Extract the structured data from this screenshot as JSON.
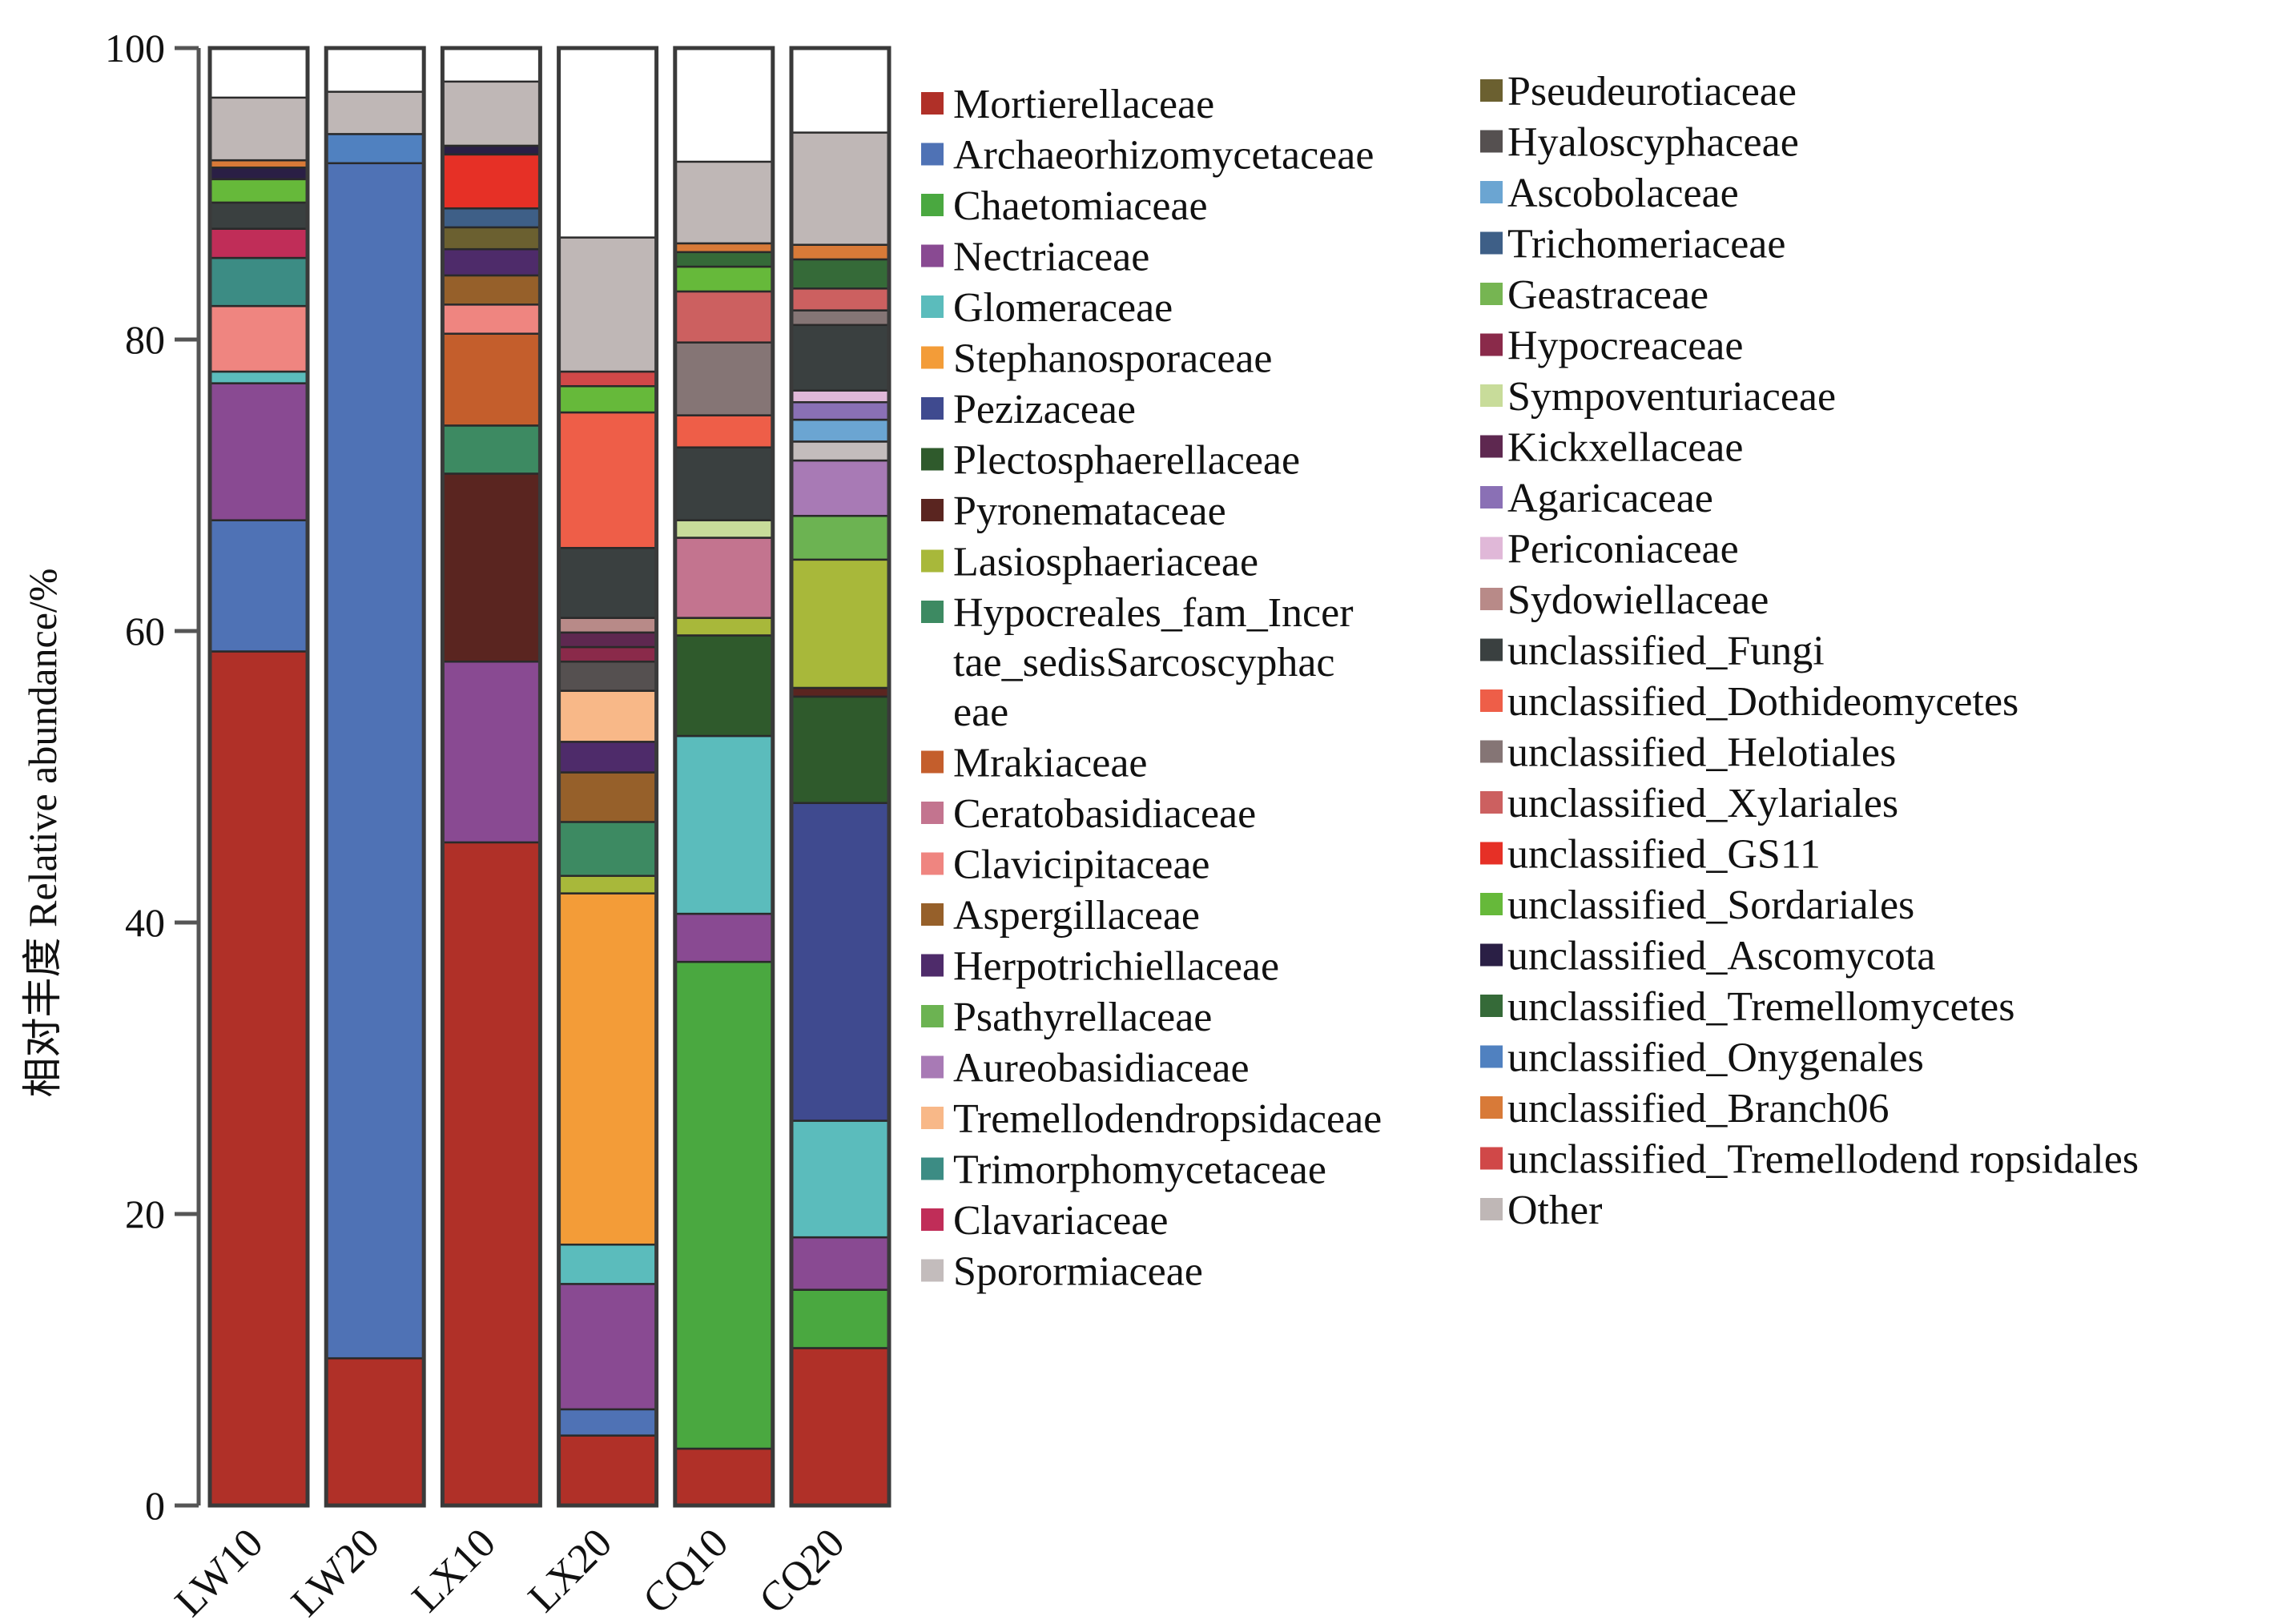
{
  "chart_data": {
    "type": "bar",
    "stacked": true,
    "ylabel": "相对丰度 Relative abundance/%",
    "xlabel": "",
    "ylim": [
      0,
      100
    ],
    "yticks": [
      "0",
      "20",
      "40",
      "60",
      "80",
      "100"
    ],
    "categories": [
      "LW10",
      "LW20",
      "LX10",
      "LX20",
      "CQ10",
      "CQ20"
    ],
    "legend_position": "right",
    "series": [
      {
        "name": "Mortierellaceae",
        "color": "#b03028",
        "values": [
          58.6,
          10.1,
          45.5,
          4.8,
          3.9,
          10.8
        ]
      },
      {
        "name": "Archaeorhizomycetaceae",
        "color": "#4f72b5",
        "values": [
          9.0,
          82.0,
          0.0,
          1.8,
          0.0,
          0.0
        ]
      },
      {
        "name": "Chaetomiaceae",
        "color": "#4aa840",
        "values": [
          0.0,
          0.0,
          0.0,
          0.0,
          33.4,
          4.0
        ]
      },
      {
        "name": "Nectriaceae",
        "color": "#894a92",
        "values": [
          9.4,
          0.0,
          12.4,
          8.6,
          3.3,
          3.6
        ]
      },
      {
        "name": "Glomeraceae",
        "color": "#5bbcbc",
        "values": [
          0.8,
          0.0,
          0.0,
          2.7,
          12.2,
          8.0
        ]
      },
      {
        "name": "Stephanosporaceae",
        "color": "#f39c38",
        "values": [
          0.0,
          0.0,
          0.0,
          24.1,
          0.0,
          0.0
        ]
      },
      {
        "name": "Pezizaceae",
        "color": "#3f4a8f",
        "values": [
          0.0,
          0.0,
          0.0,
          0.0,
          0.0,
          21.8
        ]
      },
      {
        "name": "Plectosphaerellaceae",
        "color": "#2f5a2c",
        "values": [
          0.0,
          0.0,
          0.0,
          0.0,
          6.9,
          7.3
        ]
      },
      {
        "name": "Pyronemataceae",
        "color": "#5a2520",
        "values": [
          0.0,
          0.0,
          12.9,
          0.0,
          0.0,
          0.6
        ]
      },
      {
        "name": "Lasiosphaeriaceae",
        "color": "#a8b83a",
        "values": [
          0.0,
          0.0,
          0.0,
          1.2,
          1.2,
          8.8
        ]
      },
      {
        "name": "Hypocreales_fam_Incertae_sedisSarcoscyphaceae",
        "color": "#3d8a62",
        "values": [
          0.0,
          0.0,
          3.3,
          3.7,
          0.0,
          0.0
        ]
      },
      {
        "name": "Mrakiaceae",
        "color": "#c45e2c",
        "values": [
          0.0,
          0.0,
          6.3,
          0.0,
          0.0,
          0.0
        ]
      },
      {
        "name": "Ceratobasidiaceae",
        "color": "#c3748f",
        "values": [
          0.0,
          0.0,
          0.0,
          0.0,
          5.5,
          0.0
        ]
      },
      {
        "name": "Clavicipitaceae",
        "color": "#ef8580",
        "values": [
          4.5,
          0.0,
          2.0,
          0.0,
          0.0,
          0.0
        ]
      },
      {
        "name": "Aspergillaceae",
        "color": "#96602a",
        "values": [
          0.0,
          0.0,
          2.0,
          3.4,
          0.0,
          0.0
        ]
      },
      {
        "name": "Herpotrichiellaceae",
        "color": "#4e2b6a",
        "values": [
          0.0,
          0.0,
          1.8,
          2.1,
          0.0,
          0.0
        ]
      },
      {
        "name": "Psathyrellaceae",
        "color": "#6cb352",
        "values": [
          0.0,
          0.0,
          0.0,
          0.0,
          0.0,
          3.0
        ]
      },
      {
        "name": "Aureobasidiaceae",
        "color": "#a87ab5",
        "values": [
          0.0,
          0.0,
          0.0,
          0.0,
          0.0,
          3.8
        ]
      },
      {
        "name": "Tremellodendropsidaceae",
        "color": "#f8b888",
        "values": [
          0.0,
          0.0,
          0.0,
          3.5,
          0.0,
          0.0
        ]
      },
      {
        "name": "Trimorphomycetaceae",
        "color": "#3c8c84",
        "values": [
          3.3,
          0.0,
          0.0,
          0.0,
          0.0,
          0.0
        ]
      },
      {
        "name": "Clavariaceae",
        "color": "#c02d58",
        "values": [
          2.0,
          0.0,
          0.0,
          0.0,
          0.0,
          0.0
        ]
      },
      {
        "name": "Sporormiaceae",
        "color": "#c3bcbc",
        "values": [
          0.0,
          0.0,
          0.0,
          0.0,
          0.0,
          1.3
        ]
      },
      {
        "name": "Pseudeurotiaceae",
        "color": "#6b6030",
        "values": [
          0.0,
          0.0,
          1.5,
          0.0,
          0.0,
          0.0
        ]
      },
      {
        "name": "Hyaloscyphaceae",
        "color": "#555050",
        "values": [
          0.0,
          0.0,
          0.0,
          2.0,
          0.0,
          0.0
        ]
      },
      {
        "name": "Ascobolaceae",
        "color": "#6ba5d2",
        "values": [
          0.0,
          0.0,
          0.0,
          0.0,
          0.0,
          1.5
        ]
      },
      {
        "name": "Trichomeriaceae",
        "color": "#3e5f87",
        "values": [
          0.0,
          0.0,
          1.3,
          0.0,
          0.0,
          0.0
        ]
      },
      {
        "name": "Geastraceae",
        "color": "#76b552",
        "values": [
          0.0,
          0.0,
          0.0,
          0.0,
          0.0,
          0.0
        ]
      },
      {
        "name": "Hypocreaceae",
        "color": "#8a2a4a",
        "values": [
          0.0,
          0.0,
          0.0,
          1.0,
          0.0,
          0.0
        ]
      },
      {
        "name": "Sympoventuriaceae",
        "color": "#c8dc9a",
        "values": [
          0.0,
          0.0,
          0.0,
          0.0,
          1.2,
          0.0
        ]
      },
      {
        "name": "Kickxellaceae",
        "color": "#5e2850",
        "values": [
          0.0,
          0.0,
          0.0,
          1.0,
          0.0,
          0.0
        ]
      },
      {
        "name": "Agaricaceae",
        "color": "#8a70b5",
        "values": [
          0.0,
          0.0,
          0.0,
          0.0,
          0.0,
          1.2
        ]
      },
      {
        "name": "Periconiaceae",
        "color": "#e0b8d8",
        "values": [
          0.0,
          0.0,
          0.0,
          0.0,
          0.0,
          0.8
        ]
      },
      {
        "name": "Sydowiellaceae",
        "color": "#b88a88",
        "values": [
          0.0,
          0.0,
          0.0,
          1.0,
          0.0,
          0.0
        ]
      },
      {
        "name": "unclassified_Fungi",
        "color": "#3a4040",
        "values": [
          1.8,
          0.0,
          0.0,
          4.8,
          5.0,
          4.5
        ]
      },
      {
        "name": "unclassified_Dothideomycetes",
        "color": "#ee5e48",
        "values": [
          0.0,
          0.0,
          0.0,
          9.3,
          2.2,
          0.0
        ]
      },
      {
        "name": "unclassified_Helotiales",
        "color": "#857575",
        "values": [
          0.0,
          0.0,
          0.0,
          0.0,
          5.0,
          1.0
        ]
      },
      {
        "name": "unclassified_Xylariales",
        "color": "#cc6060",
        "values": [
          0.0,
          0.0,
          0.0,
          0.0,
          3.5,
          1.5
        ]
      },
      {
        "name": "unclassified_GS11",
        "color": "#e63026",
        "values": [
          0.0,
          0.0,
          3.7,
          0.0,
          0.0,
          0.0
        ]
      },
      {
        "name": "unclassified_Sordariales",
        "color": "#66b93a",
        "values": [
          1.6,
          0.0,
          0.0,
          1.8,
          1.7,
          0.0
        ]
      },
      {
        "name": "unclassified_Ascomycota",
        "color": "#2a1f45",
        "values": [
          0.8,
          0.0,
          0.6,
          0.0,
          0.0,
          0.0
        ]
      },
      {
        "name": "unclassified_Tremellomycetes",
        "color": "#356a38",
        "values": [
          0.0,
          0.0,
          0.0,
          0.0,
          1.0,
          2.0
        ]
      },
      {
        "name": "unclassified_Onygenales",
        "color": "#5081c0",
        "values": [
          0.0,
          2.0,
          0.0,
          0.0,
          0.0,
          0.0
        ]
      },
      {
        "name": "unclassified_Branch06",
        "color": "#d87a38",
        "values": [
          0.5,
          0.0,
          0.0,
          0.0,
          0.6,
          1.0
        ]
      },
      {
        "name": "unclassified_Tremellodend ropsidales",
        "color": "#d04848",
        "values": [
          0.0,
          0.0,
          0.0,
          1.0,
          0.0,
          0.0
        ]
      },
      {
        "name": "Other",
        "color": "#bfb7b6",
        "values": [
          4.3,
          2.9,
          4.4,
          9.2,
          5.6,
          7.7
        ]
      }
    ]
  }
}
